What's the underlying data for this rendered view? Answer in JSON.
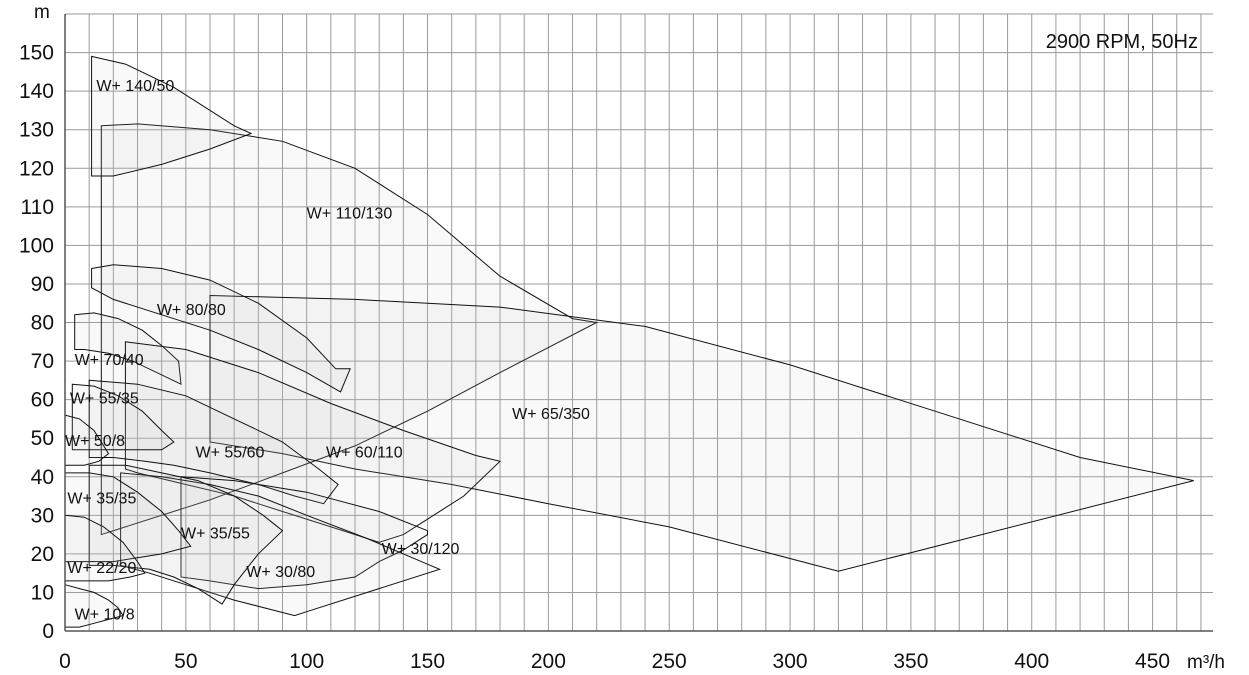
{
  "chart_data": {
    "type": "area",
    "title": "",
    "annotation": "2900 RPM, 50Hz",
    "xlabel": "m³/h",
    "ylabel": "m",
    "xlim": [
      0,
      475
    ],
    "ylim": [
      0,
      160
    ],
    "x_ticks": [
      0,
      50,
      100,
      150,
      200,
      250,
      300,
      350,
      400,
      450
    ],
    "y_ticks": [
      0,
      10,
      20,
      30,
      40,
      50,
      60,
      70,
      80,
      90,
      100,
      110,
      120,
      130,
      140,
      150
    ],
    "x_grid_step": 10,
    "y_grid_step": 10,
    "grid": true,
    "series": [
      {
        "name": "W+ 110/130",
        "label_at": [
          100,
          107
        ],
        "points": [
          [
            15,
            131
          ],
          [
            30,
            131.5
          ],
          [
            60,
            130
          ],
          [
            90,
            127
          ],
          [
            120,
            120
          ],
          [
            150,
            108
          ],
          [
            180,
            92
          ],
          [
            210,
            81
          ],
          [
            220,
            80
          ],
          [
            180,
            67
          ],
          [
            150,
            57
          ],
          [
            120,
            48
          ],
          [
            90,
            41
          ],
          [
            60,
            34
          ],
          [
            30,
            28
          ],
          [
            15,
            25
          ],
          [
            15,
            131
          ]
        ]
      },
      {
        "name": "W+ 65/350",
        "label_at": [
          185,
          55
        ],
        "points": [
          [
            60,
            87
          ],
          [
            120,
            86
          ],
          [
            180,
            84
          ],
          [
            240,
            79
          ],
          [
            300,
            69
          ],
          [
            360,
            57
          ],
          [
            420,
            45
          ],
          [
            467,
            39
          ],
          [
            320,
            15.5
          ],
          [
            250,
            27
          ],
          [
            200,
            33
          ],
          [
            160,
            38
          ],
          [
            120,
            42
          ],
          [
            90,
            46
          ],
          [
            60,
            49
          ],
          [
            60,
            87
          ]
        ]
      },
      {
        "name": "W+ 140/50",
        "label_at": [
          13,
          140
        ],
        "points": [
          [
            11,
            149
          ],
          [
            25,
            147
          ],
          [
            45,
            141
          ],
          [
            70,
            131
          ],
          [
            77,
            129
          ],
          [
            60,
            125
          ],
          [
            40,
            121
          ],
          [
            20,
            118
          ],
          [
            11,
            118
          ],
          [
            11,
            149
          ]
        ]
      },
      {
        "name": "W+ 80/80",
        "label_at": [
          38,
          82
        ],
        "points": [
          [
            11,
            94
          ],
          [
            20,
            95
          ],
          [
            40,
            94
          ],
          [
            60,
            91
          ],
          [
            80,
            85
          ],
          [
            100,
            76
          ],
          [
            112,
            68
          ],
          [
            118,
            68
          ],
          [
            114,
            62
          ],
          [
            100,
            67
          ],
          [
            80,
            73
          ],
          [
            60,
            78
          ],
          [
            40,
            82
          ],
          [
            20,
            86
          ],
          [
            11,
            89
          ],
          [
            11,
            94
          ]
        ]
      },
      {
        "name": "W+ 70/40",
        "label_at": [
          4,
          69
        ],
        "points": [
          [
            4,
            82
          ],
          [
            12,
            82.5
          ],
          [
            22,
            81
          ],
          [
            32,
            78
          ],
          [
            40,
            74
          ],
          [
            47,
            70
          ],
          [
            48,
            64
          ],
          [
            38,
            67
          ],
          [
            28,
            70
          ],
          [
            18,
            72
          ],
          [
            8,
            73
          ],
          [
            4,
            73
          ],
          [
            4,
            82
          ]
        ]
      },
      {
        "name": "W+ 60/110",
        "label_at": [
          108,
          45
        ],
        "points": [
          [
            25,
            75
          ],
          [
            50,
            73
          ],
          [
            80,
            67
          ],
          [
            110,
            59
          ],
          [
            140,
            52
          ],
          [
            170,
            45.5
          ],
          [
            180,
            44
          ],
          [
            165,
            35
          ],
          [
            150,
            29
          ],
          [
            140,
            25
          ],
          [
            130,
            23
          ],
          [
            110,
            27
          ],
          [
            90,
            31
          ],
          [
            70,
            35
          ],
          [
            50,
            38
          ],
          [
            30,
            41
          ],
          [
            25,
            42
          ],
          [
            25,
            75
          ]
        ]
      },
      {
        "name": "W+ 55/60",
        "label_at": [
          54,
          45
        ],
        "points": [
          [
            10,
            65
          ],
          [
            30,
            64
          ],
          [
            50,
            61
          ],
          [
            70,
            55
          ],
          [
            90,
            49
          ],
          [
            105,
            42
          ],
          [
            113,
            38
          ],
          [
            107,
            33
          ],
          [
            95,
            35
          ],
          [
            80,
            38
          ],
          [
            60,
            41
          ],
          [
            45,
            43
          ],
          [
            33,
            44
          ],
          [
            20,
            45
          ],
          [
            10,
            45
          ],
          [
            10,
            65
          ]
        ]
      },
      {
        "name": "W+ 55/35",
        "label_at": [
          2,
          59
        ],
        "points": [
          [
            3,
            64
          ],
          [
            12,
            63.5
          ],
          [
            22,
            61
          ],
          [
            32,
            57
          ],
          [
            40,
            52
          ],
          [
            45,
            49
          ],
          [
            40,
            47
          ],
          [
            30,
            47
          ],
          [
            20,
            47
          ],
          [
            12,
            47
          ],
          [
            3,
            47
          ],
          [
            3,
            64
          ]
        ]
      },
      {
        "name": "W+ 50/8",
        "label_at": [
          0,
          48
        ],
        "points": [
          [
            0,
            56
          ],
          [
            6,
            55
          ],
          [
            12,
            52
          ],
          [
            16,
            48
          ],
          [
            18,
            46
          ],
          [
            14,
            44
          ],
          [
            8,
            43
          ],
          [
            0,
            43
          ],
          [
            0,
            56
          ]
        ]
      },
      {
        "name": "W+ 30/120",
        "label_at": [
          131,
          20
        ],
        "points": [
          [
            48,
            40
          ],
          [
            70,
            39
          ],
          [
            100,
            36
          ],
          [
            130,
            31
          ],
          [
            150,
            26
          ],
          [
            150,
            25
          ],
          [
            140,
            21
          ],
          [
            130,
            18
          ],
          [
            120,
            14
          ],
          [
            100,
            12
          ],
          [
            80,
            11
          ],
          [
            60,
            13
          ],
          [
            48,
            14
          ],
          [
            48,
            40
          ]
        ]
      },
      {
        "name": "W+ 30/80",
        "label_at": [
          75,
          14
        ],
        "points": [
          [
            23,
            41
          ],
          [
            40,
            40
          ],
          [
            60,
            38
          ],
          [
            80,
            35
          ],
          [
            100,
            30
          ],
          [
            125,
            24
          ],
          [
            140,
            20
          ],
          [
            155,
            16
          ],
          [
            100,
            5
          ],
          [
            95,
            4
          ],
          [
            70,
            8
          ],
          [
            50,
            12
          ],
          [
            35,
            15
          ],
          [
            23,
            17
          ],
          [
            23,
            41
          ]
        ]
      },
      {
        "name": "W+ 35/55",
        "label_at": [
          48,
          24
        ],
        "points": [
          [
            10,
            43
          ],
          [
            25,
            43
          ],
          [
            40,
            41
          ],
          [
            55,
            39
          ],
          [
            70,
            35
          ],
          [
            82,
            30
          ],
          [
            90,
            26
          ],
          [
            80,
            20
          ],
          [
            70,
            12
          ],
          [
            65,
            7
          ],
          [
            55,
            11
          ],
          [
            45,
            14
          ],
          [
            35,
            16
          ],
          [
            20,
            17
          ],
          [
            10,
            17
          ],
          [
            10,
            43
          ]
        ]
      },
      {
        "name": "W+ 35/35",
        "label_at": [
          1,
          33
        ],
        "points": [
          [
            0,
            41
          ],
          [
            10,
            41
          ],
          [
            20,
            40
          ],
          [
            30,
            36
          ],
          [
            40,
            31
          ],
          [
            47,
            26
          ],
          [
            52,
            22
          ],
          [
            40,
            20
          ],
          [
            30,
            19
          ],
          [
            20,
            18
          ],
          [
            10,
            18
          ],
          [
            0,
            18
          ],
          [
            0,
            41
          ]
        ]
      },
      {
        "name": "W+ 22/20",
        "label_at": [
          1,
          15
        ],
        "points": [
          [
            0,
            30
          ],
          [
            8,
            29.5
          ],
          [
            16,
            27
          ],
          [
            24,
            23
          ],
          [
            30,
            18
          ],
          [
            33,
            15
          ],
          [
            27,
            14
          ],
          [
            18,
            13
          ],
          [
            8,
            13
          ],
          [
            0,
            13
          ],
          [
            0,
            30
          ]
        ]
      },
      {
        "name": "W+ 10/8",
        "label_at": [
          4,
          3
        ],
        "points": [
          [
            0,
            12
          ],
          [
            6,
            11
          ],
          [
            12,
            10
          ],
          [
            18,
            8
          ],
          [
            22,
            6
          ],
          [
            24,
            4
          ],
          [
            18,
            3
          ],
          [
            12,
            2
          ],
          [
            6,
            1
          ],
          [
            0,
            1
          ],
          [
            0,
            12
          ]
        ]
      }
    ]
  }
}
